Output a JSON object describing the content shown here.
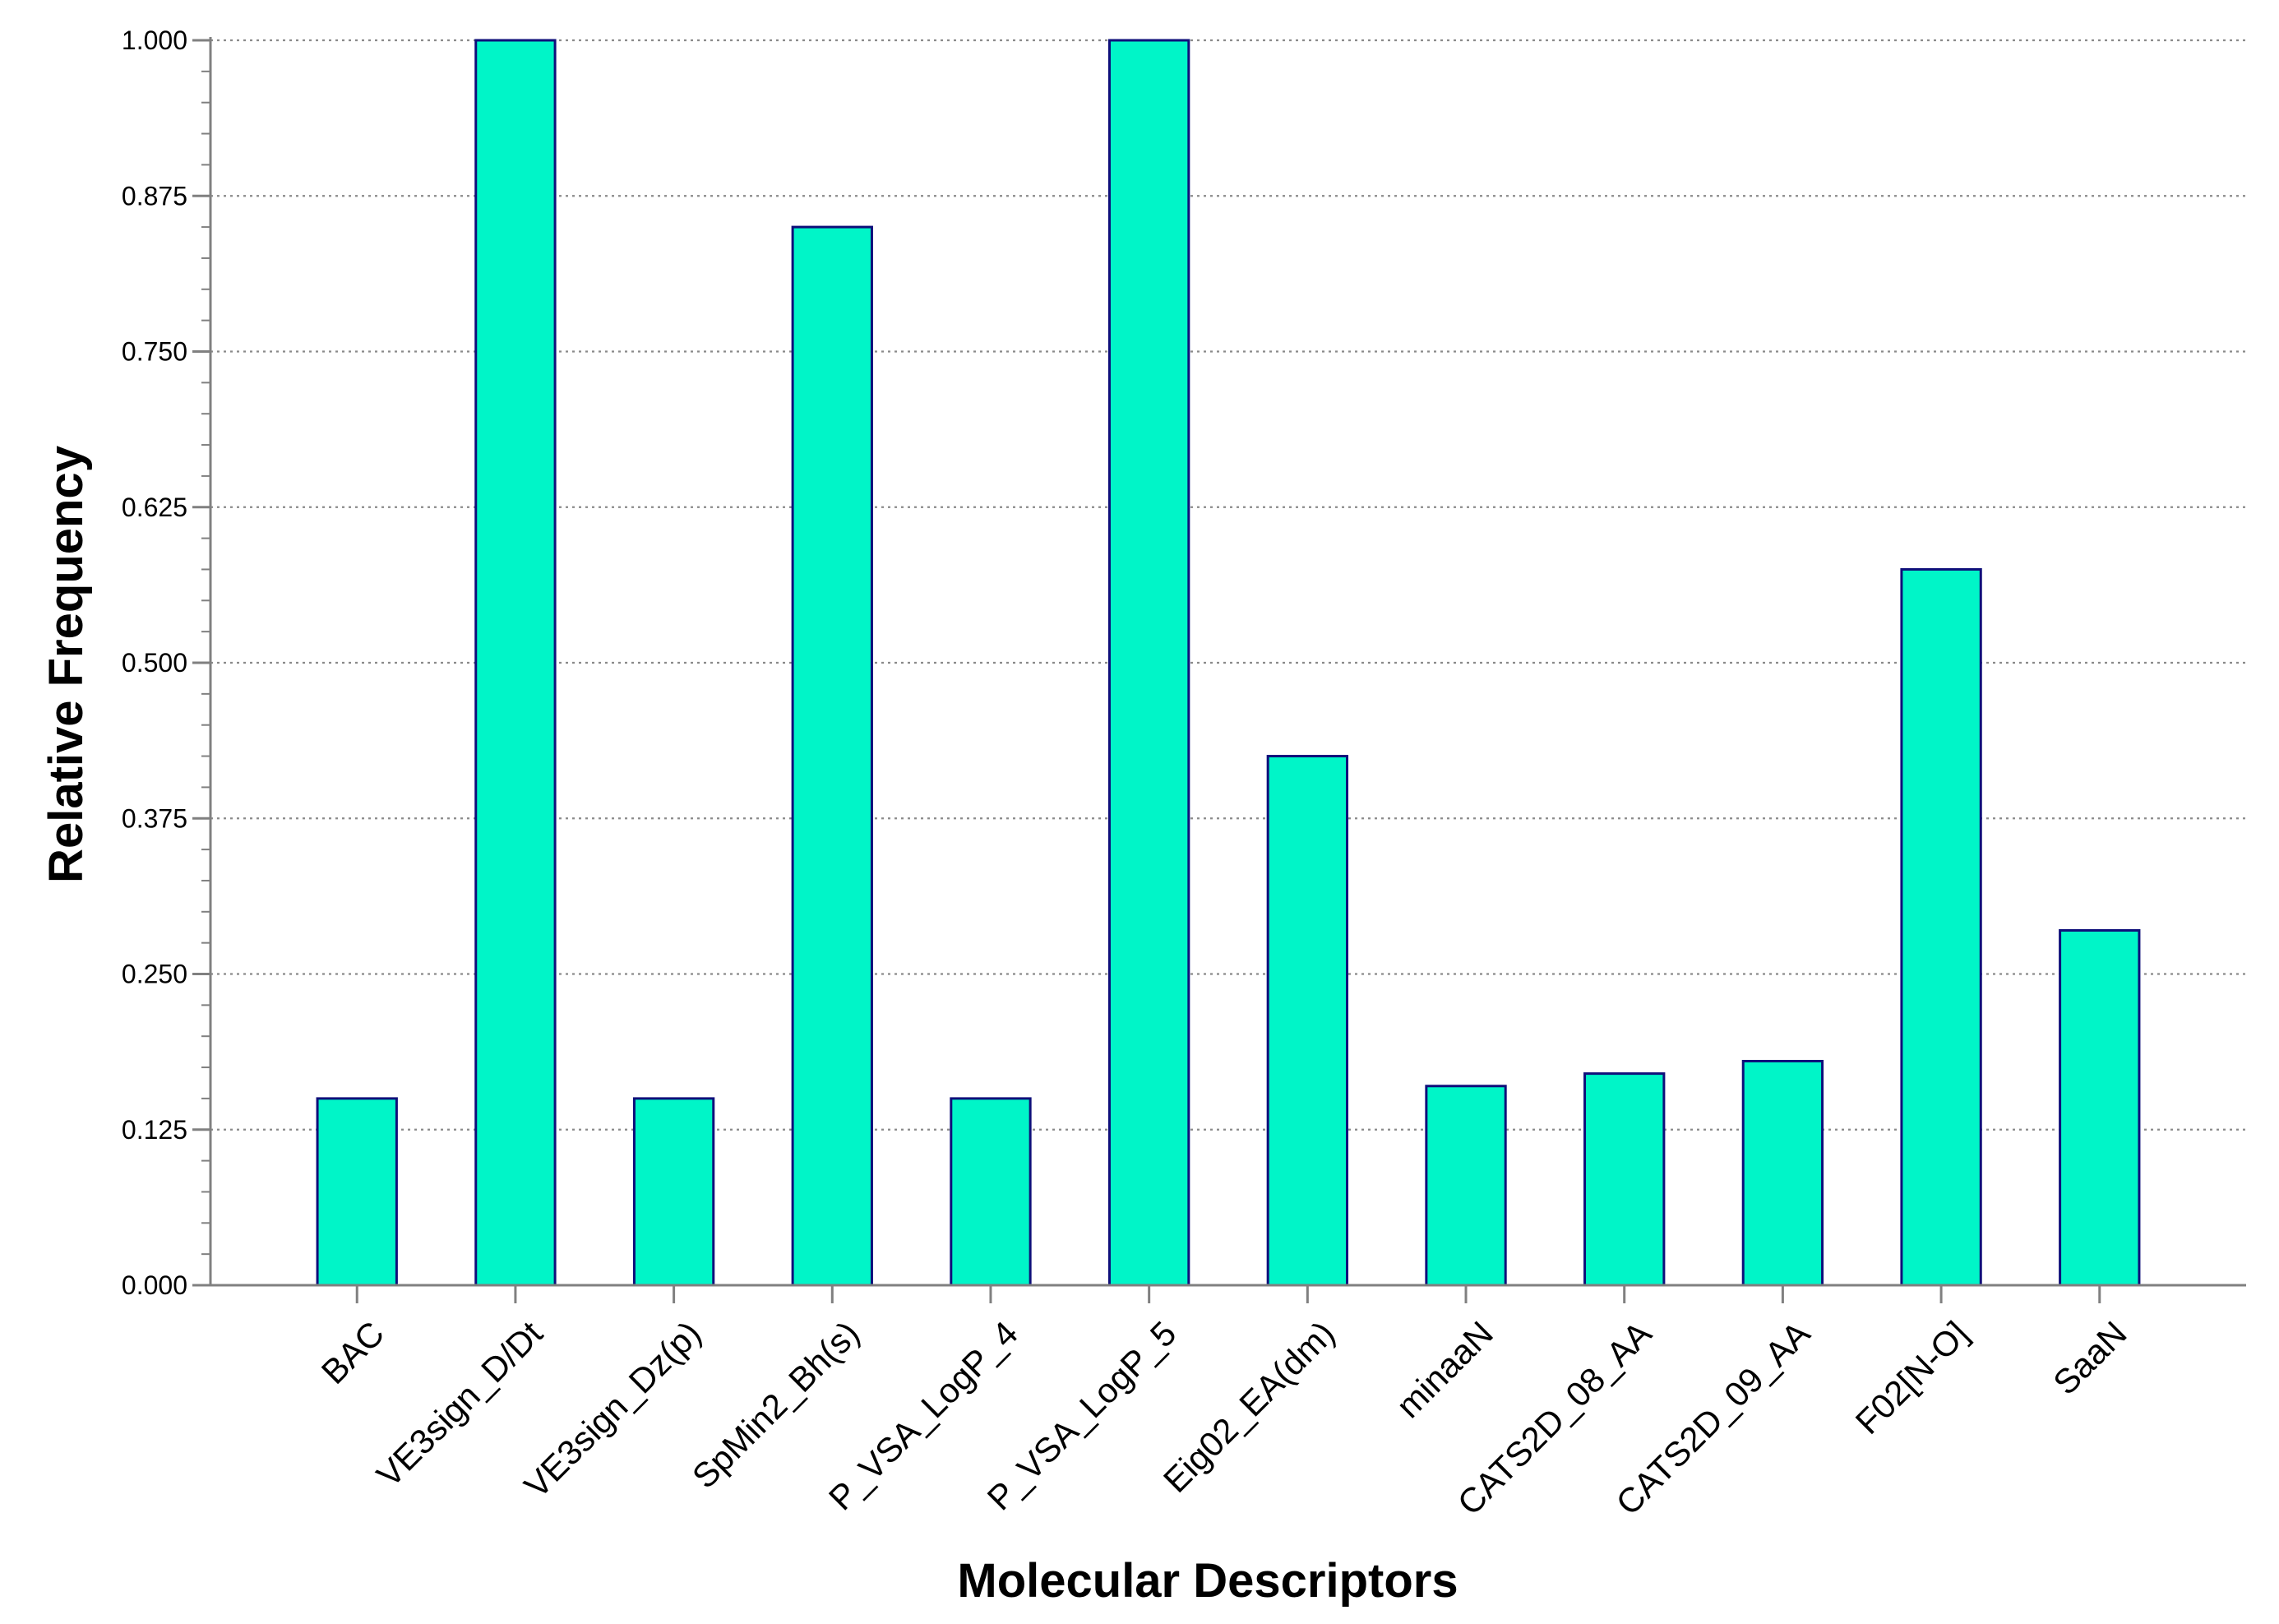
{
  "chart_data": {
    "type": "bar",
    "title": "",
    "xlabel": "Molecular Descriptors",
    "ylabel": "Relative Frequency",
    "categories": [
      "BAC",
      "VE3sign_D/Dt",
      "VE3sign_Dz(p)",
      "SpMin2_Bh(s)",
      "P_VSA_LogP_4",
      "P_VSA_LogP_5",
      "Eig02_EA(dm)",
      "minaaN",
      "CATS2D_08_AA",
      "CATS2D_09_AA",
      "F02[N-O]",
      "SaaN"
    ],
    "values": [
      0.15,
      1.0,
      0.15,
      0.85,
      0.15,
      1.0,
      0.425,
      0.16,
      0.17,
      0.18,
      0.575,
      0.285
    ],
    "ylim": [
      0,
      1
    ],
    "yticks": [
      0.0,
      0.125,
      0.25,
      0.375,
      0.5,
      0.625,
      0.75,
      0.875,
      1.0
    ],
    "ytick_labels": [
      "0.000",
      "0.125",
      "0.250",
      "0.375",
      "0.500",
      "0.625",
      "0.750",
      "0.875",
      "1.000"
    ],
    "minor_ticks_per_interval": 5,
    "grid": "horizontal-dotted",
    "legend": "none",
    "colors": {
      "bar_fill": "#00F5C8",
      "bar_stroke": "#0F0F7A",
      "axis": "#808080",
      "grid": "#8A8A8A",
      "text": "#000000"
    }
  }
}
